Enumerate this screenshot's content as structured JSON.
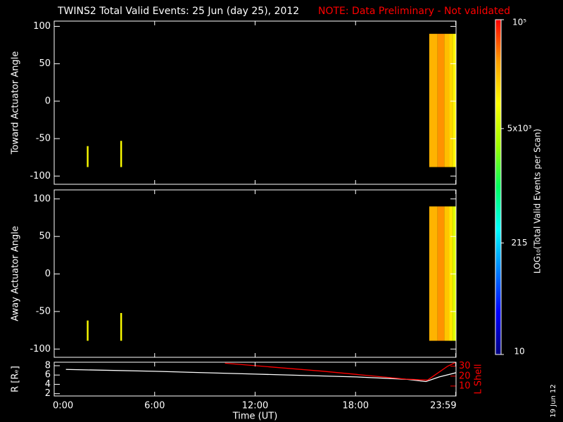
{
  "chart_data": [
    {
      "type": "heatmap",
      "title": "TWINS2  Total Valid Events: 25 Jun (day  25), 2012",
      "note": "NOTE: Data Preliminary - Not validated",
      "ylabel": "Toward Actuator Angle",
      "xlim": [
        0,
        24
      ],
      "ylim": [
        -111,
        107
      ],
      "yticks": [
        -100,
        -50,
        0,
        50,
        100
      ],
      "cells": [
        {
          "x": [
            1.95,
            2.05
          ],
          "y": [
            -88,
            -60
          ],
          "value": 10000
        },
        {
          "x": [
            3.95,
            4.05
          ],
          "y": [
            -88,
            -53
          ],
          "value": 10000
        },
        {
          "x": [
            22.4,
            22.9
          ],
          "y": [
            -88,
            90
          ],
          "value": 25000
        },
        {
          "x": [
            22.9,
            23.3
          ],
          "y": [
            -88,
            90
          ],
          "value": 35000
        },
        {
          "x": [
            23.3,
            23.6
          ],
          "y": [
            -88,
            90
          ],
          "value": 22000
        },
        {
          "x": [
            23.6,
            23.8
          ],
          "y": [
            -88,
            90
          ],
          "value": 16000
        },
        {
          "x": [
            23.8,
            24
          ],
          "y": [
            -88,
            90
          ],
          "value": 11000
        }
      ]
    },
    {
      "type": "heatmap",
      "ylabel": "Away Actuator Angle",
      "xlim": [
        0,
        24
      ],
      "ylim": [
        -111,
        112
      ],
      "yticks": [
        -100,
        -50,
        0,
        50,
        100
      ],
      "cells": [
        {
          "x": [
            1.95,
            2.05
          ],
          "y": [
            -89,
            -62
          ],
          "value": 10000
        },
        {
          "x": [
            3.95,
            4.05
          ],
          "y": [
            -89,
            -52
          ],
          "value": 10000
        },
        {
          "x": [
            22.4,
            22.9
          ],
          "y": [
            -89,
            90
          ],
          "value": 25000
        },
        {
          "x": [
            22.9,
            23.3
          ],
          "y": [
            -89,
            90
          ],
          "value": 35000
        },
        {
          "x": [
            23.3,
            23.6
          ],
          "y": [
            -89,
            90
          ],
          "value": 20000
        },
        {
          "x": [
            23.6,
            23.8
          ],
          "y": [
            -89,
            90
          ],
          "value": 13000
        },
        {
          "x": [
            23.8,
            24
          ],
          "y": [
            -89,
            90
          ],
          "value": 7000
        }
      ]
    },
    {
      "type": "line",
      "xlabel": "Time (UT)",
      "ylabel": "R [Rₑ]",
      "y2label": "L Shell",
      "xlim": [
        0,
        24
      ],
      "xticks": [
        {
          "value": 0,
          "label": "0:00"
        },
        {
          "value": 6,
          "label": "6:00"
        },
        {
          "value": 12,
          "label": "12:00"
        },
        {
          "value": 18,
          "label": "18:00"
        },
        {
          "value": 23.983,
          "label": "23:59"
        }
      ],
      "ylim": [
        1.5,
        8.75
      ],
      "yticks": [
        2,
        4,
        6,
        8
      ],
      "y2lim": [
        0,
        34
      ],
      "y2ticks": [
        10,
        20,
        30
      ],
      "series": [
        {
          "color": "#ffffff",
          "x": [
            0.7,
            6,
            12,
            18,
            21,
            22.2,
            23,
            24
          ],
          "values": [
            7.2,
            6.8,
            6.2,
            5.6,
            5.1,
            4.6,
            5.6,
            6.5
          ]
        },
        {
          "color": "#ff0000",
          "axis": "y2",
          "x": [
            10.2,
            16,
            21,
            22.3,
            23.5,
            24
          ],
          "values": [
            33,
            25,
            17,
            16,
            30,
            34
          ]
        }
      ]
    },
    {
      "type": "colorbar",
      "label": "LOG₁₀(Total Valid  Events per Scan)",
      "lim": [
        10,
        100000
      ],
      "log": true,
      "ticks": [
        10,
        215,
        {
          "value": 5000,
          "label": "5x10³"
        },
        {
          "value": 100000,
          "label": "10⁵"
        }
      ],
      "colormap": [
        "#000080",
        "#0000ff",
        "#0080ff",
        "#00ffff",
        "#00ff60",
        "#a0ff00",
        "#ffff00",
        "#ffa000",
        "#ff0000"
      ]
    }
  ],
  "date_stamp": "19 Jun 12"
}
